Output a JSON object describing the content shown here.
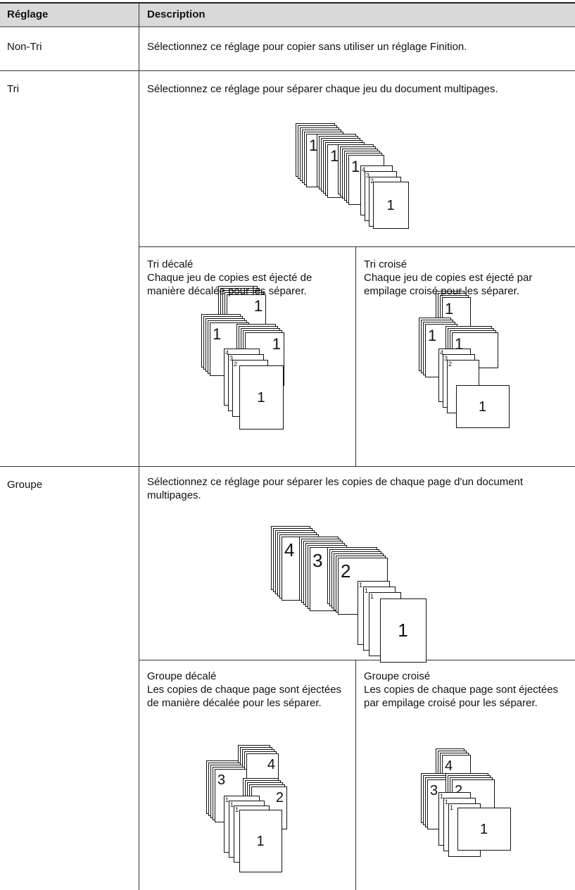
{
  "table": {
    "header": [
      "Réglage",
      "Description"
    ],
    "rows": [
      {
        "setting": "Non-Tri",
        "description": "Sélectionnez ce réglage pour copier sans utiliser un réglage Finition."
      },
      {
        "setting": "Tri",
        "description": "Sélectionnez ce réglage pour séparer chaque jeu du document multipages.",
        "figure": {
          "labels": [
            "1",
            "1",
            "1",
            "4",
            "3",
            "2",
            "1"
          ]
        },
        "options": [
          {
            "title": "Tri décalé",
            "description": "Chaque jeu de copies est éjecté de manière décalée pour les séparer.",
            "figure": {
              "labels": [
                "1",
                "1",
                "1",
                "4",
                "3",
                "2",
                "1"
              ]
            }
          },
          {
            "title": "Tri croisé",
            "description": "Chaque jeu de copies est éjecté par empilage croisé pour les séparer.",
            "figure": {
              "labels": [
                "1",
                "1",
                "1",
                "4",
                "3",
                "2",
                "1"
              ]
            }
          }
        ]
      },
      {
        "setting": "Groupe",
        "description": "Sélectionnez ce réglage pour séparer les copies de chaque page d'un document multipages.",
        "figure": {
          "labels": [
            "4",
            "3",
            "2",
            "1",
            "1",
            "1",
            "1"
          ]
        },
        "options": [
          {
            "title": "Groupe décalé",
            "description": "Les copies de chaque page sont éjectées de manière décalée pour les séparer.",
            "figure": {
              "labels": [
                "4",
                "3",
                "2",
                "1",
                "1",
                "1",
                "1"
              ]
            }
          },
          {
            "title": "Groupe croisé",
            "description": "Les copies de chaque page sont éjectées par empilage croisé pour les séparer.",
            "figure": {
              "labels": [
                "4",
                "3",
                "2",
                "1",
                "1",
                "1",
                "1"
              ]
            }
          }
        ]
      }
    ]
  }
}
